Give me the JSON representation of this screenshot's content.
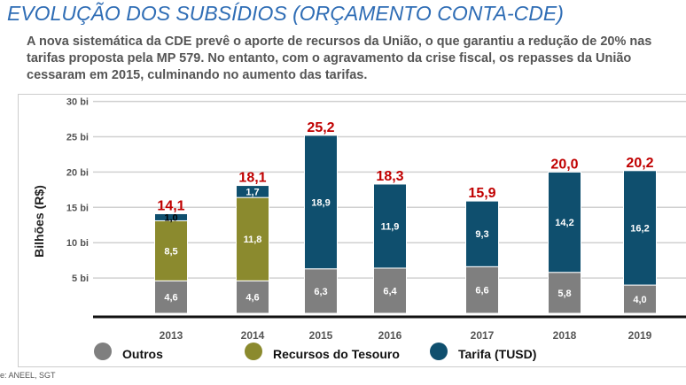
{
  "header": {
    "title": "EVOLUÇÃO DOS SUBSÍDIOS (ORÇAMENTO CONTA-CDE)",
    "description": "A nova sistemática da CDE prevê o aporte de recursos da União, o que garantiu a redução de 20% nas tarifas proposta pela MP 579. No entanto, com o agravamento da crise fiscal, os repasses da União cessaram em 2015, culminando no aumento das tarifas."
  },
  "source": "e: ANEEL, SGT",
  "chart_data": {
    "type": "bar",
    "stacked": true,
    "ylabel": "Bilhões (R$)",
    "ylim": [
      0,
      30
    ],
    "yticks": [
      "5 bi",
      "10 bi",
      "15 bi",
      "20 bi",
      "25 bi",
      "30 bi"
    ],
    "ytick_values": [
      5,
      10,
      15,
      20,
      25,
      30
    ],
    "grid": true,
    "legend_position": "bottom",
    "categories": [
      "2013",
      "2014",
      "2015",
      "2016",
      "2017",
      "2018",
      "2019"
    ],
    "series": [
      {
        "name": "Outros",
        "color": "#7f7f7f",
        "values": [
          4.6,
          4.6,
          6.3,
          6.4,
          6.6,
          5.8,
          4.0
        ],
        "labels": [
          "4,6",
          "4,6",
          "6,3",
          "6,4",
          "6,6",
          "5,8",
          "4,0"
        ]
      },
      {
        "name": "Recursos do Tesouro",
        "color": "#8b8a2e",
        "values": [
          8.5,
          11.8,
          0,
          0,
          0,
          0,
          0
        ],
        "labels": [
          "8,5",
          "11,8",
          "",
          "",
          "",
          "",
          ""
        ]
      },
      {
        "name": "Tarifa (TUSD)",
        "color": "#0f4f6e",
        "values": [
          1.0,
          1.7,
          18.9,
          11.9,
          9.3,
          14.2,
          16.2
        ],
        "labels": [
          "1,0",
          "1,7",
          "18,9",
          "11,9",
          "9,3",
          "14,2",
          "16,2"
        ]
      }
    ],
    "totals": [
      "14,1",
      "18,1",
      "25,2",
      "18,3",
      "15,9",
      "20,0",
      "20,2"
    ],
    "total_color": "#c00000"
  }
}
